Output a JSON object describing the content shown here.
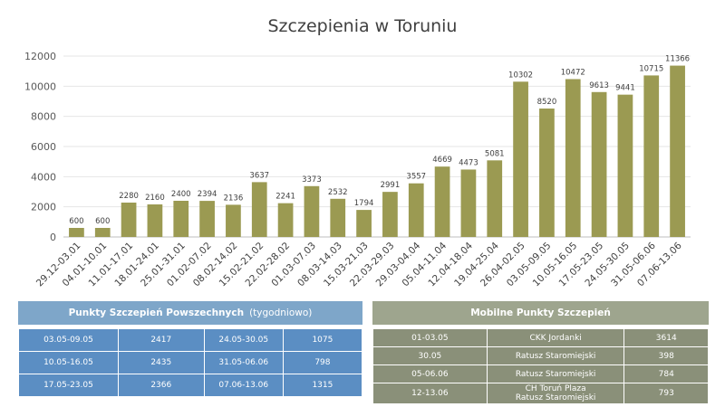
{
  "chart_data": {
    "type": "bar",
    "title": "Szczepienia w Toruniu",
    "categories": [
      "29.12-03.01",
      "04.01-10.01",
      "11.01-17.01",
      "18.01-24.01",
      "25.01-31.01",
      "01.02-07.02",
      "08.02-14.02",
      "15.02-21.02",
      "22.02-28.02",
      "01.03-07.03",
      "08.03-14.03",
      "15.03-21.03",
      "22.03-29.03",
      "29.03-04.04",
      "05.04-11.04",
      "12.04-18.04",
      "19.04-25.04",
      "26.04-02.05",
      "03.05-09.05",
      "10.05-16.05",
      "17.05-23.05",
      "24.05-30.05",
      "31.05-06.06",
      "07.06-13.06"
    ],
    "values": [
      600,
      600,
      2280,
      2160,
      2400,
      2394,
      2136,
      3637,
      2241,
      3373,
      2532,
      1794,
      2991,
      3557,
      4669,
      4473,
      5081,
      10302,
      8520,
      10472,
      9613,
      9441,
      10715,
      11366
    ],
    "ylim": [
      0,
      12000
    ],
    "yticks": [
      0,
      2000,
      4000,
      6000,
      8000,
      10000,
      12000
    ],
    "grid": true,
    "color": "#9b9a52"
  },
  "left_panel": {
    "title": "Punkty Szczepień Powszechnych",
    "subtitle": "(tygodniowo)",
    "rows": [
      [
        "03.05-09.05",
        "2417",
        "24.05-30.05",
        "1075"
      ],
      [
        "10.05-16.05",
        "2435",
        "31.05-06.06",
        "798"
      ],
      [
        "17.05-23.05",
        "2366",
        "07.06-13.06",
        "1315"
      ]
    ]
  },
  "right_panel": {
    "title": "Mobilne Punkty Szczepień",
    "rows": [
      {
        "date": "01-03.05",
        "place": "CKK Jordanki",
        "count": "3614"
      },
      {
        "date": "30.05",
        "place": "Ratusz Staromiejski",
        "count": "398"
      },
      {
        "date": "05-06.06",
        "place": "Ratusz Staromiejski",
        "count": "784"
      },
      {
        "date": "12-13.06",
        "place": "CH Toruń Plaza",
        "place2": "Ratusz Staromiejski",
        "count": "793"
      }
    ]
  }
}
